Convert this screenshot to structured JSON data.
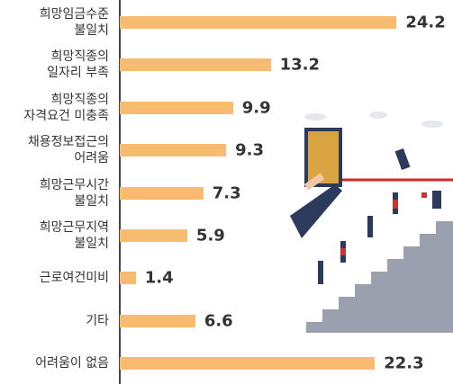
{
  "chart_data": {
    "type": "bar",
    "orientation": "horizontal",
    "categories": [
      "희망임금수준\n불일치",
      "희망직종의\n일자리 부족",
      "희망직종의\n자격요건 미충족",
      "채용정보접근의\n어려움",
      "희망근무시간\n불일치",
      "희망근무지역\n불일치",
      "근로여건미비",
      "기타",
      "어려움이 없음"
    ],
    "values": [
      24.2,
      13.2,
      9.9,
      9.3,
      7.3,
      5.9,
      1.4,
      6.6,
      22.3
    ],
    "color": "#f8bb6f"
  }
}
